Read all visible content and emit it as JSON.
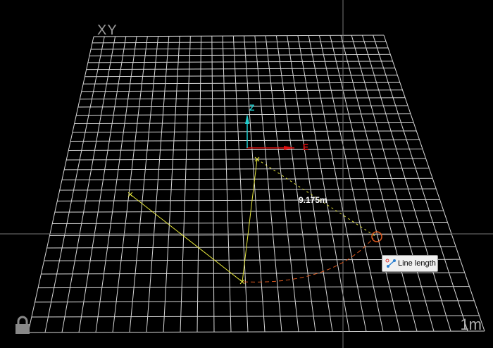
{
  "viewport": {
    "plane_label": "XY",
    "scale_label": "1m",
    "axis_x_label": "E",
    "axis_z_label": "Z",
    "dimension_text": "9.175m",
    "tooltip": {
      "icon": "line-length-icon",
      "label": "Line length"
    },
    "lock_icon": "lock-icon",
    "colors": {
      "grid": "#d8d8d8",
      "polyline": "#e6e63c",
      "arc": "#e05a1e",
      "x_axis": "#e01010",
      "z_axis": "#20d0d0",
      "background": "#000000"
    }
  }
}
